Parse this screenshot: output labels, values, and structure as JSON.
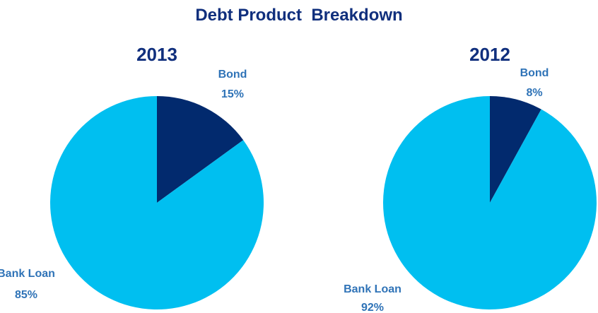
{
  "title": "Debt Product  Breakdown",
  "colors": {
    "title": "#102f7d",
    "label": "#2f73b7",
    "bond": "#022a6e",
    "bank_loan": "#00bff0"
  },
  "chart_data": [
    {
      "type": "pie",
      "title": "2013",
      "slices": [
        {
          "label": "Bond",
          "value": 15,
          "value_label": "15%"
        },
        {
          "label": "Bank Loan",
          "value": 85,
          "value_label": "85%"
        }
      ]
    },
    {
      "type": "pie",
      "title": "2012",
      "slices": [
        {
          "label": "Bond",
          "value": 8,
          "value_label": "8%"
        },
        {
          "label": "Bank Loan",
          "value": 92,
          "value_label": "92%"
        }
      ]
    }
  ]
}
